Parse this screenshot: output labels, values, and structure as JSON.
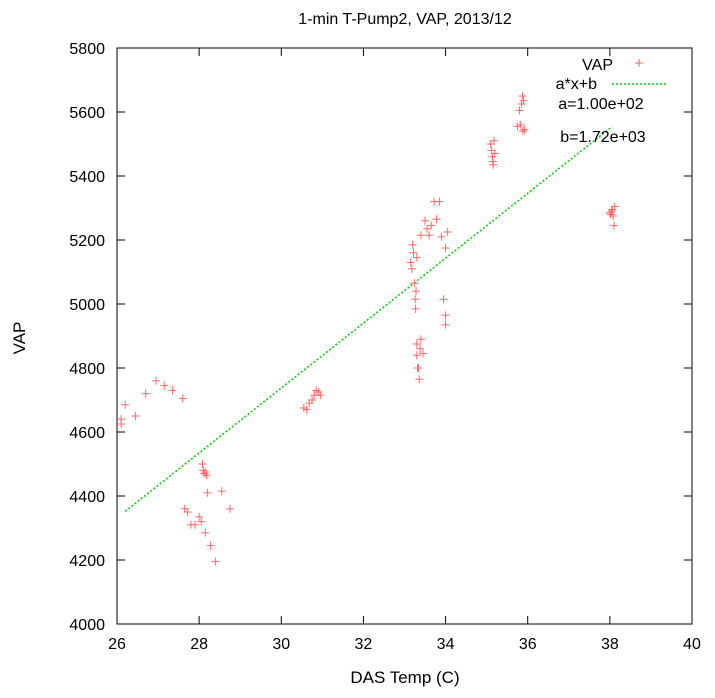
{
  "chart_data": {
    "type": "scatter",
    "title": "1-min T-Pump2, VAP, 2013/12",
    "xlabel": "DAS Temp (C)",
    "ylabel": "VAP",
    "xlim": [
      26,
      40
    ],
    "ylim": [
      4000,
      5800
    ],
    "x_ticks": [
      "26",
      "28",
      "30",
      "32",
      "34",
      "36",
      "38",
      "40"
    ],
    "y_ticks": [
      "4000",
      "4200",
      "4400",
      "4600",
      "4800",
      "5000",
      "5200",
      "5400",
      "5600",
      "5800"
    ],
    "grid": false,
    "legend_position": "top-right",
    "series": [
      {
        "name": "VAP",
        "marker": "plus",
        "color": "#ff6666",
        "points": [
          [
            26.1,
            4640
          ],
          [
            26.1,
            4625
          ],
          [
            26.2,
            4685
          ],
          [
            26.45,
            4650
          ],
          [
            26.7,
            4720
          ],
          [
            26.95,
            4760
          ],
          [
            27.15,
            4745
          ],
          [
            27.35,
            4730
          ],
          [
            27.6,
            4705
          ],
          [
            27.65,
            4360
          ],
          [
            27.72,
            4350
          ],
          [
            27.8,
            4310
          ],
          [
            27.9,
            4310
          ],
          [
            28.0,
            4335
          ],
          [
            28.05,
            4320
          ],
          [
            28.08,
            4500
          ],
          [
            28.1,
            4480
          ],
          [
            28.12,
            4470
          ],
          [
            28.15,
            4475
          ],
          [
            28.18,
            4465
          ],
          [
            28.15,
            4285
          ],
          [
            28.2,
            4410
          ],
          [
            28.28,
            4245
          ],
          [
            28.4,
            4195
          ],
          [
            28.55,
            4415
          ],
          [
            28.75,
            4360
          ],
          [
            30.55,
            4675
          ],
          [
            30.62,
            4670
          ],
          [
            30.68,
            4690
          ],
          [
            30.75,
            4700
          ],
          [
            30.8,
            4715
          ],
          [
            30.85,
            4730
          ],
          [
            30.9,
            4725
          ],
          [
            30.95,
            4715
          ],
          [
            33.15,
            5130
          ],
          [
            33.18,
            5110
          ],
          [
            33.2,
            5185
          ],
          [
            33.22,
            5160
          ],
          [
            33.24,
            5065
          ],
          [
            33.26,
            5015
          ],
          [
            33.27,
            4985
          ],
          [
            33.3,
            5145
          ],
          [
            33.28,
            5040
          ],
          [
            33.3,
            4875
          ],
          [
            33.3,
            4840
          ],
          [
            33.32,
            4800
          ],
          [
            33.34,
            4800
          ],
          [
            33.36,
            4765
          ],
          [
            33.38,
            4860
          ],
          [
            33.4,
            4890
          ],
          [
            33.4,
            5215
          ],
          [
            33.45,
            4845
          ],
          [
            33.5,
            5260
          ],
          [
            33.55,
            5235
          ],
          [
            33.6,
            5215
          ],
          [
            33.65,
            5245
          ],
          [
            33.72,
            5320
          ],
          [
            33.78,
            5265
          ],
          [
            33.85,
            5320
          ],
          [
            33.9,
            5210
          ],
          [
            33.95,
            5015
          ],
          [
            34.0,
            4965
          ],
          [
            34.0,
            4935
          ],
          [
            34.0,
            5175
          ],
          [
            34.05,
            5225
          ],
          [
            35.1,
            5500
          ],
          [
            35.12,
            5480
          ],
          [
            35.14,
            5460
          ],
          [
            35.15,
            5445
          ],
          [
            35.16,
            5435
          ],
          [
            35.18,
            5510
          ],
          [
            35.2,
            5470
          ],
          [
            35.75,
            5555
          ],
          [
            35.8,
            5605
          ],
          [
            35.82,
            5560
          ],
          [
            35.85,
            5625
          ],
          [
            35.87,
            5650
          ],
          [
            35.88,
            5540
          ],
          [
            35.9,
            5635
          ],
          [
            35.92,
            5545
          ],
          [
            38.0,
            5285
          ],
          [
            38.02,
            5280
          ],
          [
            38.04,
            5290
          ],
          [
            38.06,
            5295
          ],
          [
            38.08,
            5275
          ],
          [
            38.1,
            5245
          ],
          [
            38.12,
            5305
          ]
        ]
      },
      {
        "name": "a*x+b",
        "type": "line",
        "style": "dotted",
        "color": "#00cc00",
        "x": [
          26.2,
          38.05
        ],
        "y": [
          4352,
          5554
        ]
      }
    ],
    "annotations": [
      "a=1.00e+02",
      "b=1.72e+03"
    ]
  }
}
